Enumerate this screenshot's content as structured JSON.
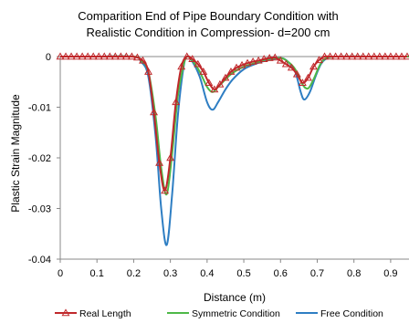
{
  "chart_data": {
    "type": "line",
    "title": [
      "Comparition End of Pipe Boundary Condition with",
      "Realistic Condition in Compression- d=200 cm"
    ],
    "xlabel": "Distance (m)",
    "ylabel": "Plastic Strain Magnitude",
    "xlim": [
      0,
      0.95
    ],
    "ylim": [
      -0.04,
      0.0
    ],
    "x_ticks": [
      "0",
      "0.1",
      "0.2",
      "0.3",
      "0.4",
      "0.5",
      "0.6",
      "0.7",
      "0.8",
      "0.9"
    ],
    "x_tick_values": [
      0,
      0.1,
      0.2,
      0.3,
      0.4,
      0.5,
      0.6,
      0.7,
      0.8,
      0.9
    ],
    "y_ticks": [
      "0",
      "-0.01",
      "-0.02",
      "-0.03",
      "-0.04"
    ],
    "y_tick_values": [
      0,
      -0.01,
      -0.02,
      -0.03,
      -0.04
    ],
    "grid": false,
    "legend_position": "bottom",
    "series": [
      {
        "name": "Real Length",
        "color": "#c0282b",
        "marker": "triangle",
        "x": [
          0,
          0.015,
          0.03,
          0.045,
          0.06,
          0.075,
          0.09,
          0.105,
          0.12,
          0.135,
          0.15,
          0.165,
          0.18,
          0.195,
          0.21,
          0.225,
          0.24,
          0.255,
          0.27,
          0.285,
          0.3,
          0.315,
          0.33,
          0.345,
          0.36,
          0.375,
          0.39,
          0.405,
          0.42,
          0.435,
          0.45,
          0.465,
          0.48,
          0.495,
          0.51,
          0.525,
          0.54,
          0.555,
          0.57,
          0.585,
          0.6,
          0.615,
          0.63,
          0.645,
          0.66,
          0.675,
          0.69,
          0.705,
          0.72,
          0.735,
          0.75,
          0.765,
          0.78,
          0.795,
          0.81,
          0.825,
          0.84,
          0.855,
          0.87,
          0.885,
          0.9,
          0.915,
          0.93,
          0.945
        ],
        "y": [
          0,
          0,
          0,
          0,
          0,
          0,
          0,
          0,
          0,
          0,
          0,
          0,
          0,
          0,
          -0.0002,
          -0.0008,
          -0.003,
          -0.011,
          -0.021,
          -0.0265,
          -0.02,
          -0.009,
          -0.002,
          0,
          -0.0005,
          -0.0015,
          -0.003,
          -0.0052,
          -0.0065,
          -0.0055,
          -0.0042,
          -0.003,
          -0.0022,
          -0.0017,
          -0.0013,
          -0.001,
          -0.0008,
          -0.0005,
          -0.0003,
          -0.0002,
          -0.0008,
          -0.0015,
          -0.0022,
          -0.0035,
          -0.0052,
          -0.0042,
          -0.002,
          -0.0007,
          0,
          0,
          0,
          0,
          0,
          0,
          0,
          0,
          0,
          0,
          0,
          0,
          0,
          0,
          0,
          0
        ]
      },
      {
        "name": "Symmetric Condition",
        "color": "#4eb848",
        "x": [
          0,
          0.1,
          0.2,
          0.22,
          0.24,
          0.26,
          0.275,
          0.29,
          0.305,
          0.32,
          0.335,
          0.345,
          0.36,
          0.38,
          0.4,
          0.415,
          0.43,
          0.45,
          0.47,
          0.5,
          0.53,
          0.56,
          0.6,
          0.62,
          0.64,
          0.66,
          0.675,
          0.69,
          0.705,
          0.72,
          0.75,
          0.85,
          0.95
        ],
        "y": [
          0,
          0,
          0,
          -0.0008,
          -0.003,
          -0.012,
          -0.022,
          -0.0272,
          -0.019,
          -0.008,
          -0.002,
          0,
          -0.0008,
          -0.003,
          -0.006,
          -0.007,
          -0.006,
          -0.0045,
          -0.0032,
          -0.002,
          -0.0013,
          -0.0006,
          -0.0003,
          -0.001,
          -0.0025,
          -0.0055,
          -0.0063,
          -0.0045,
          -0.002,
          -0.0005,
          0,
          0,
          0
        ]
      },
      {
        "name": "Free Condition",
        "color": "#2e7ec3",
        "x": [
          0,
          0.1,
          0.2,
          0.22,
          0.24,
          0.26,
          0.275,
          0.29,
          0.305,
          0.32,
          0.335,
          0.345,
          0.36,
          0.38,
          0.4,
          0.415,
          0.43,
          0.45,
          0.47,
          0.5,
          0.53,
          0.56,
          0.6,
          0.62,
          0.64,
          0.655,
          0.665,
          0.68,
          0.695,
          0.71,
          0.725,
          0.75,
          0.85,
          0.95
        ],
        "y": [
          0,
          0,
          0,
          -0.001,
          -0.004,
          -0.016,
          -0.03,
          -0.0372,
          -0.027,
          -0.012,
          -0.0025,
          0,
          -0.001,
          -0.004,
          -0.009,
          -0.0105,
          -0.009,
          -0.0065,
          -0.0045,
          -0.0025,
          -0.0015,
          -0.0008,
          -0.0003,
          -0.001,
          -0.003,
          -0.007,
          -0.0085,
          -0.007,
          -0.004,
          -0.0015,
          -0.0004,
          0,
          0,
          0
        ]
      }
    ]
  }
}
